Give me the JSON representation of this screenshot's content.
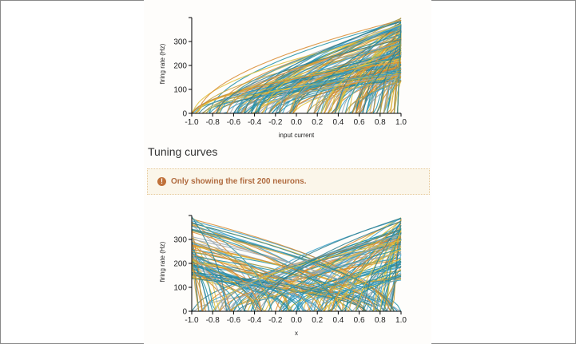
{
  "colors": {
    "series": [
      "#1f8fa6",
      "#3aa0c9",
      "#e0c23a",
      "#d88a2f",
      "#9aa7b0",
      "#2e7f8f",
      "#c7a23a"
    ],
    "alert_text": "#b06a3e",
    "alert_bg": "#fbf6ea"
  },
  "section_heading": "Tuning curves",
  "alert": {
    "icon": "exclamation-circle-icon",
    "text": "Only showing the first 200 neurons."
  },
  "chart_data": [
    {
      "type": "line",
      "xlabel": "input current",
      "ylabel": "firing rate (Hz)",
      "xlim": [
        -1.0,
        1.0
      ],
      "ylim": [
        0,
        400
      ],
      "x_ticks": [
        "-1.0",
        "-0.8",
        "-0.6",
        "-0.4",
        "-0.2",
        "0.0",
        "0.2",
        "0.4",
        "0.6",
        "0.8",
        "1.0"
      ],
      "y_ticks": [
        "0",
        "100",
        "200",
        "300"
      ],
      "x_tick_values": [
        -1.0,
        -0.8,
        -0.6,
        -0.4,
        -0.2,
        0.0,
        0.2,
        0.4,
        0.6,
        0.8,
        1.0
      ],
      "y_tick_values": [
        0,
        100,
        200,
        300
      ],
      "grid": false,
      "curve_shape": "rectified-rising",
      "neurons": 200,
      "rate_range_at_edge": [
        130,
        400
      ],
      "intercept_range": [
        -1.0,
        0.99
      ]
    },
    {
      "type": "line",
      "xlabel": "x",
      "ylabel": "firing rate (Hz)",
      "xlim": [
        -1.0,
        1.0
      ],
      "ylim": [
        0,
        400
      ],
      "x_ticks": [
        "-1.0",
        "-0.8",
        "-0.6",
        "-0.4",
        "-0.2",
        "0.0",
        "0.2",
        "0.4",
        "0.6",
        "0.8",
        "1.0"
      ],
      "y_ticks": [
        "0",
        "100",
        "200",
        "300"
      ],
      "x_tick_values": [
        -1.0,
        -0.8,
        -0.6,
        -0.4,
        -0.2,
        0.0,
        0.2,
        0.4,
        0.6,
        0.8,
        1.0
      ],
      "y_tick_values": [
        0,
        100,
        200,
        300
      ],
      "grid": false,
      "curve_shape": "rectified-both-directions",
      "neurons": 200,
      "rate_range_at_edge": [
        130,
        400
      ],
      "intercept_range": [
        -1.0,
        0.99
      ]
    }
  ]
}
